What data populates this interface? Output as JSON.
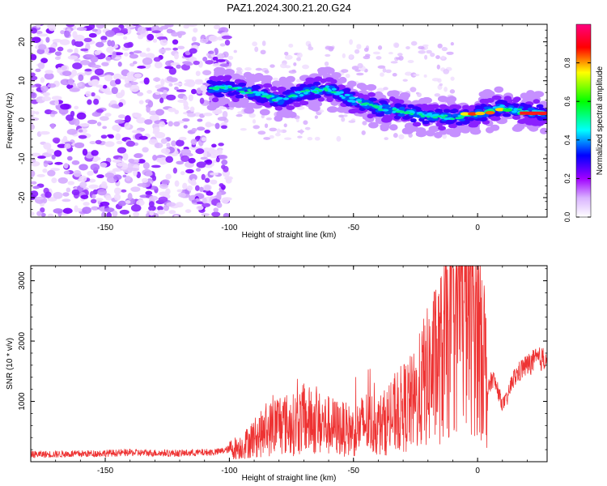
{
  "title": "PAZ1.2024.300.21.20.G24",
  "chart_data": [
    {
      "type": "heatmap",
      "xlabel": "Height of straight line (km)",
      "ylabel": "Frequency (Hz)",
      "xlim": [
        -180,
        28
      ],
      "ylim": [
        -25,
        24.5
      ],
      "xticks": [
        -150,
        -100,
        -50,
        0
      ],
      "xtick_labels": [
        "-150",
        "-100",
        "-50",
        "0"
      ],
      "yticks": [
        20,
        10,
        0,
        -10,
        -20
      ],
      "ytick_labels": [
        "20",
        "10",
        "0",
        "-10",
        "-20"
      ],
      "grid": false,
      "colorbar": {
        "label": "Normalized spectral amplitude",
        "range": [
          0,
          1
        ],
        "ticks": [
          0.0,
          0.2,
          0.4,
          0.6,
          0.8
        ],
        "tick_labels": [
          "0.0",
          "0.2",
          "0.4",
          "0.6",
          "0.8"
        ],
        "colormap": [
          "#ffffff",
          "#a000ff",
          "#0000ff",
          "#00ffff",
          "#00ff00",
          "#ffff00",
          "#ff0000",
          "#ff0080"
        ]
      },
      "ridge": {
        "x": [
          -108,
          -100,
          -90,
          -80,
          -70,
          -60,
          -50,
          -40,
          -30,
          -20,
          -10,
          0,
          10,
          20,
          28
        ],
        "y": [
          8,
          8,
          7,
          5,
          7,
          8,
          5,
          3,
          2,
          1,
          0.5,
          1.5,
          3,
          2,
          1.5
        ]
      }
    },
    {
      "type": "line",
      "xlabel": "Height of straight line (km)",
      "ylabel": "SNR (10 * v/v)",
      "xlim": [
        -180,
        28
      ],
      "ylim": [
        0,
        3250
      ],
      "xticks": [
        -150,
        -100,
        -50,
        0
      ],
      "xtick_labels": [
        "-150",
        "-100",
        "-50",
        "0"
      ],
      "yticks": [
        1000,
        2000,
        3000
      ],
      "ytick_labels": [
        "1000",
        "2000",
        "3000"
      ],
      "grid": false,
      "series": [
        {
          "color": "#ee3333",
          "x": [
            -180,
            -160,
            -140,
            -120,
            -105,
            -95,
            -90,
            -85,
            -80,
            -75,
            -70,
            -65,
            -60,
            -55,
            -50,
            -45,
            -40,
            -35,
            -30,
            -25,
            -22,
            -20,
            -18,
            -15,
            -12,
            -10,
            -8,
            -6,
            -4,
            -2,
            0,
            2,
            4,
            6,
            8,
            10,
            12,
            14,
            16,
            18,
            20,
            22,
            24,
            26,
            28
          ],
          "y": [
            120,
            130,
            150,
            140,
            160,
            250,
            400,
            500,
            650,
            600,
            700,
            650,
            600,
            550,
            500,
            650,
            600,
            700,
            900,
            1000,
            1300,
            1400,
            1550,
            1700,
            2000,
            2300,
            2600,
            2800,
            2650,
            2700,
            2500,
            2100,
            1150,
            1400,
            1200,
            950,
            1050,
            1350,
            1450,
            1550,
            1600,
            1650,
            1700,
            1700,
            1750
          ]
        }
      ]
    }
  ]
}
